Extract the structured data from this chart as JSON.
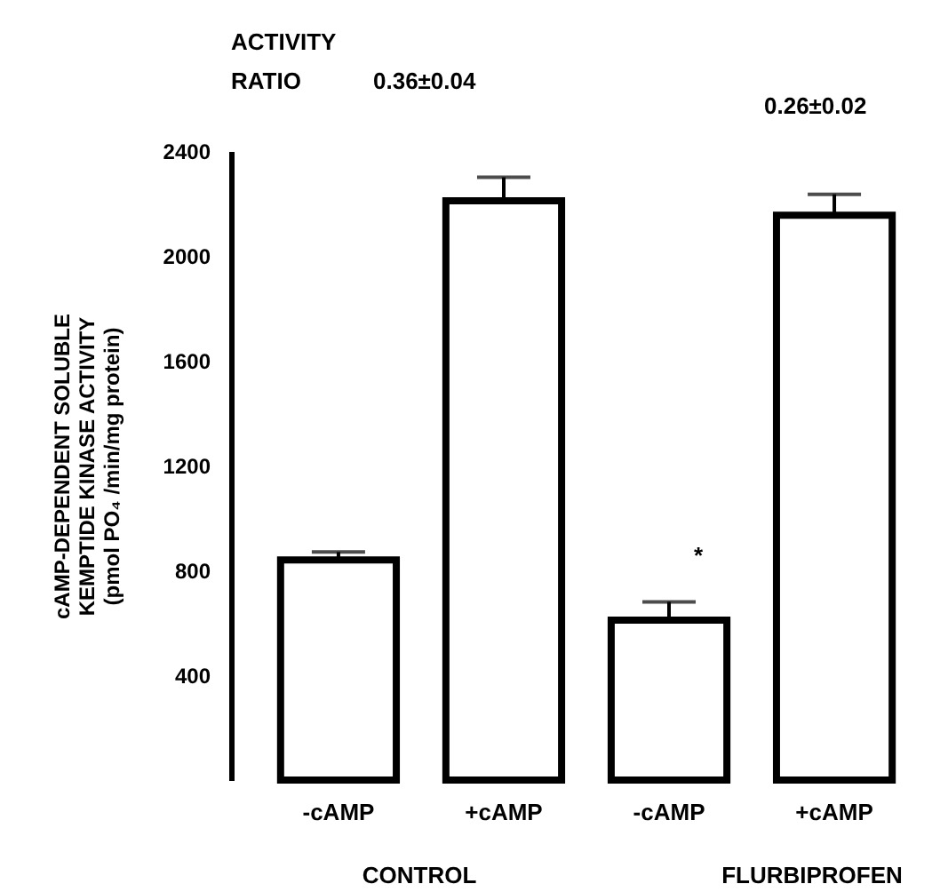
{
  "chart_data": {
    "type": "bar",
    "ylabel": "cAMP-DEPENDENT SOLUBLE KEMPTIDE KINASE ACTIVITY (pmol PO₄ /min/mg protein)",
    "categories": [
      "-cAMP",
      "+cAMP",
      "-cAMP",
      "+cAMP"
    ],
    "values": [
      840,
      2210,
      610,
      2155
    ],
    "errors": [
      30,
      90,
      70,
      80
    ],
    "color": "#ffffff",
    "ylim": [
      0,
      2400
    ],
    "yticks": [
      400,
      800,
      1200,
      1600,
      2000,
      2400
    ],
    "grid": false,
    "annotations": [
      "ACTIVITY RATIO",
      "0.36±0.04",
      "0.26±0.02",
      "*",
      "CONTROL",
      "FLURBIPROFEN"
    ]
  }
}
